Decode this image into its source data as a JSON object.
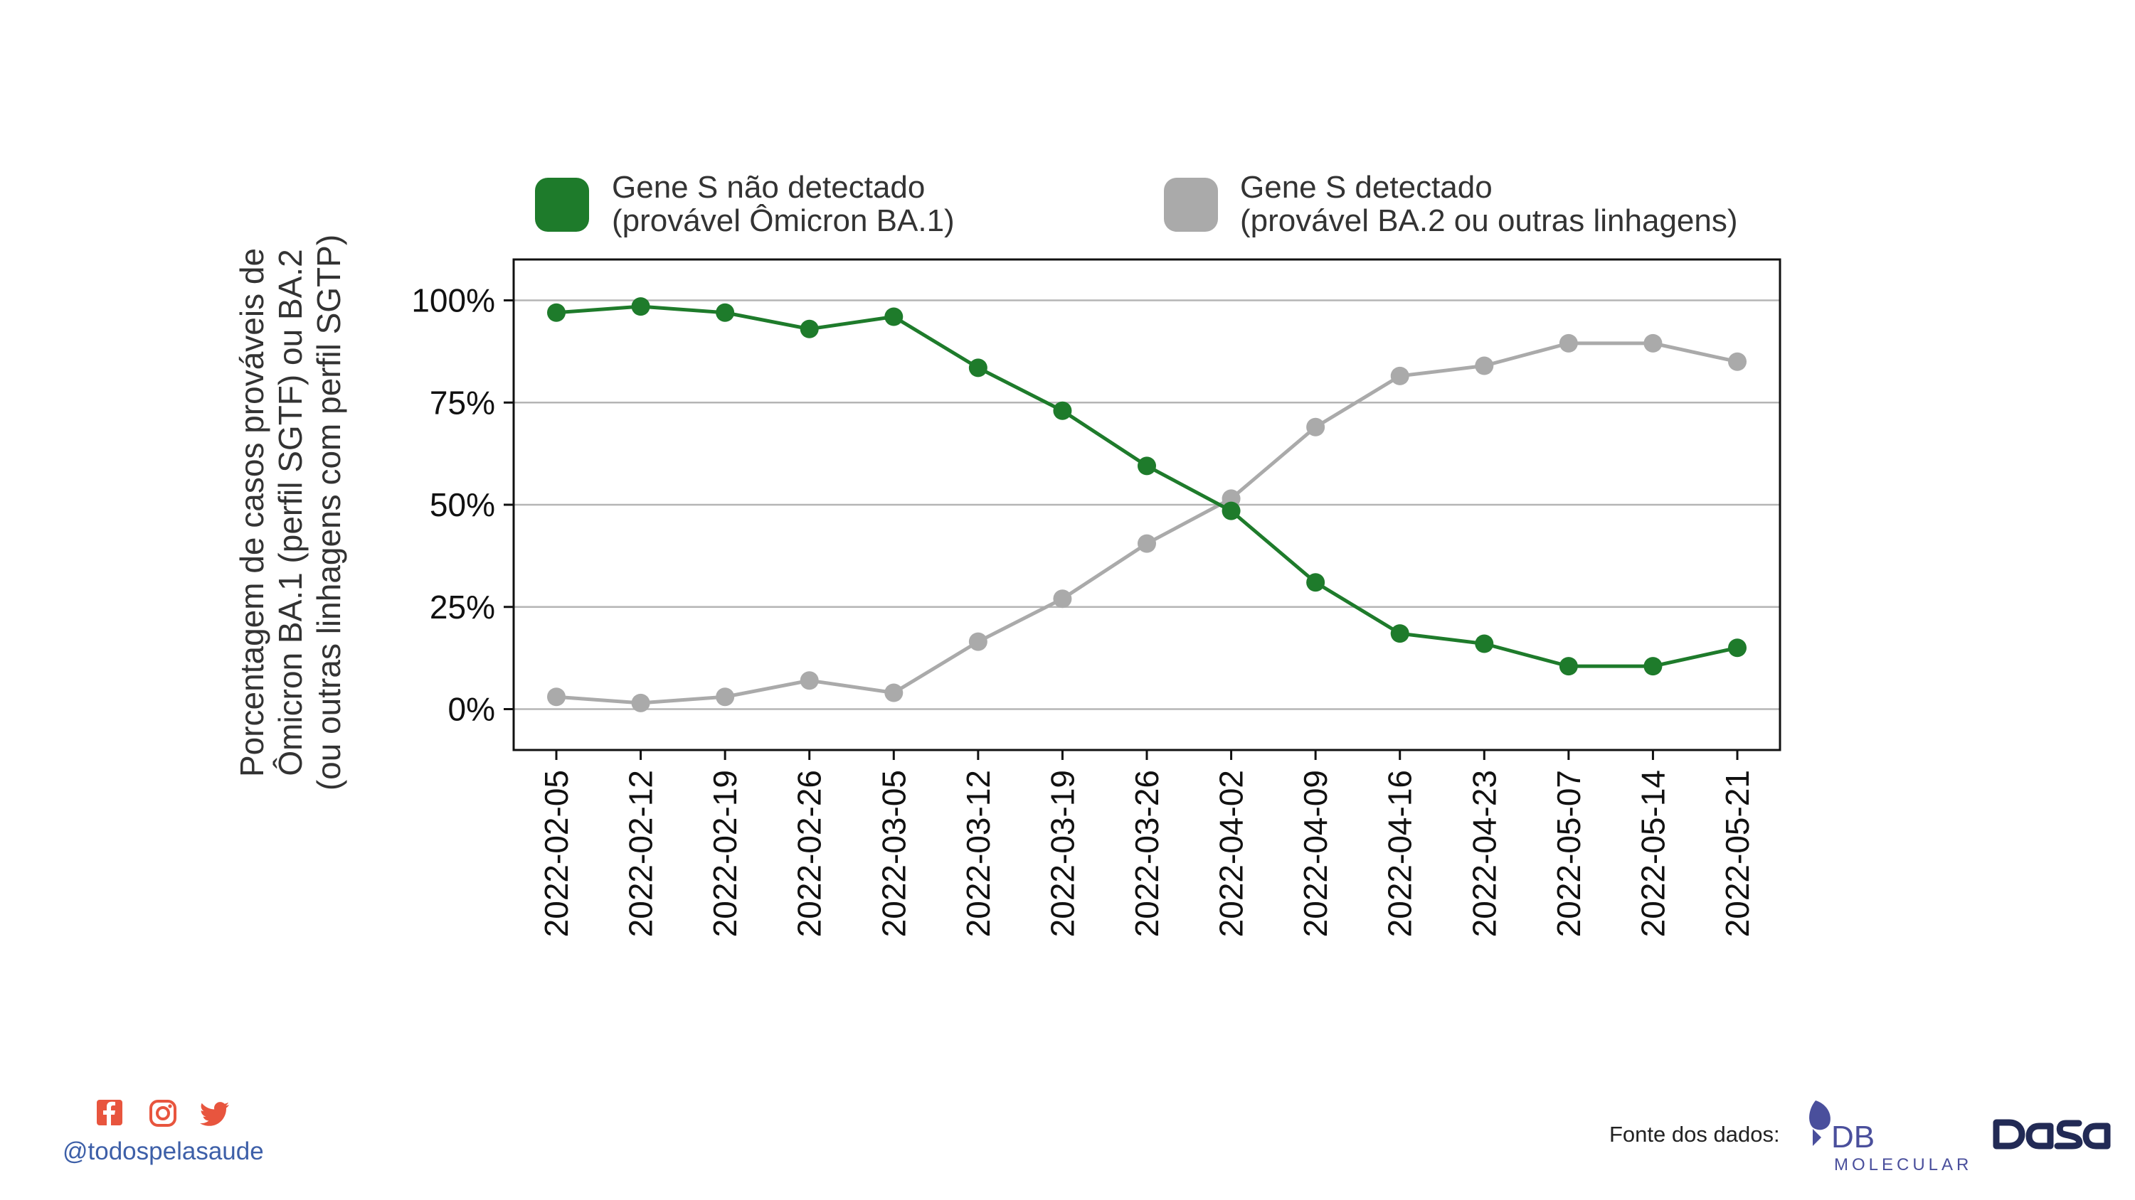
{
  "chart_data": {
    "type": "line",
    "x": [
      "2022-02-05",
      "2022-02-12",
      "2022-02-19",
      "2022-02-26",
      "2022-03-05",
      "2022-03-12",
      "2022-03-19",
      "2022-03-26",
      "2022-04-02",
      "2022-04-09",
      "2022-04-16",
      "2022-04-23",
      "2022-05-07",
      "2022-05-14",
      "2022-05-21"
    ],
    "series": [
      {
        "name_lines": [
          "Gene S não detectado",
          "(provável Ômicron BA.1)"
        ],
        "color": "#1e7b2b",
        "values": [
          97,
          98.5,
          97,
          93,
          96,
          83.5,
          73,
          59.5,
          48.5,
          31,
          18.5,
          16,
          10.5,
          10.5,
          15
        ]
      },
      {
        "name_lines": [
          "Gene S detectado",
          "(provável BA.2 ou outras linhagens)"
        ],
        "color": "#aaaaaa",
        "values": [
          3,
          1.5,
          3,
          7,
          4,
          16.5,
          27,
          40.5,
          51.5,
          69,
          81.5,
          84,
          89.5,
          89.5,
          85
        ]
      }
    ],
    "ylabel_lines": [
      "Porcentagem de casos prováveis de",
      "Ômicron BA.1 (perfil SGTF) ou BA.2",
      "(ou outras linhagens com perfil SGTP)"
    ],
    "yticks": [
      {
        "value": 0,
        "label": "0%"
      },
      {
        "value": 25,
        "label": "25%"
      },
      {
        "value": 50,
        "label": "50%"
      },
      {
        "value": 75,
        "label": "75%"
      },
      {
        "value": 100,
        "label": "100%"
      }
    ],
    "ylim": [
      -10,
      110
    ],
    "grid": "horizontal",
    "legend_position": "top"
  },
  "footer": {
    "handle": "@todospelasaude",
    "source_label": "Fonte dos dados:",
    "social_icons": [
      "facebook-icon",
      "instagram-icon",
      "twitter-icon"
    ],
    "logo_db_molecular": {
      "text": "DB",
      "subtext": "MOLECULAR"
    },
    "logo_dasa": {
      "text": "DASA"
    },
    "icon_color": "#e8553e",
    "handle_color": "#3d5fa8"
  }
}
